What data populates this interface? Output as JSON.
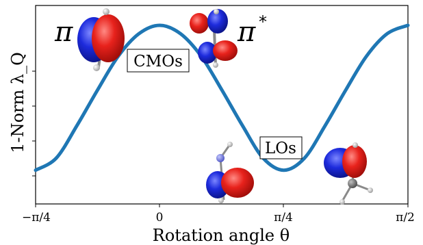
{
  "chart_data": {
    "type": "line",
    "title": "",
    "xlabel": "Rotation angle θ",
    "ylabel": "1-Norm λ_Q",
    "xlim": [
      -0.7854,
      1.5708
    ],
    "ylim": [
      0.0,
      1.0
    ],
    "xticks": [
      {
        "value": -0.7854,
        "label": "−π/4"
      },
      {
        "value": 0.0,
        "label": "0"
      },
      {
        "value": 0.7854,
        "label": "π/4"
      },
      {
        "value": 1.5708,
        "label": "π/2"
      }
    ],
    "y_tick_labels_shown": false,
    "grid": false,
    "series": [
      {
        "color": "#1f77b4",
        "x": [
          -0.7854,
          -0.6545,
          -0.5236,
          -0.3927,
          -0.2618,
          -0.1309,
          0.0,
          0.1309,
          0.2618,
          0.3927,
          0.5236,
          0.6545,
          0.7854,
          0.9163,
          1.0472,
          1.1781,
          1.309,
          1.4399,
          1.5708
        ],
        "y": [
          0.17,
          0.231,
          0.395,
          0.575,
          0.745,
          0.858,
          0.9,
          0.858,
          0.745,
          0.575,
          0.395,
          0.231,
          0.17,
          0.231,
          0.395,
          0.575,
          0.745,
          0.858,
          0.9
        ]
      }
    ],
    "annotations": [
      {
        "id": "pi",
        "text": "π"
      },
      {
        "id": "pi-star",
        "text": "π",
        "superscript": "*"
      },
      {
        "id": "cmos",
        "text": "CMOs",
        "boxed": true
      },
      {
        "id": "los",
        "text": "LOs",
        "boxed": true
      }
    ]
  },
  "colors": {
    "line": "#1f77b4",
    "lobe_red": "#e8221c",
    "lobe_blue": "#1d2bdc",
    "atom_white": "#f2f2f2",
    "atom_grey": "#7a7a7a",
    "atom_blue": "#7f86e6"
  },
  "images": [
    {
      "id": "orbital-pi",
      "depicts": "pi molecular orbital"
    },
    {
      "id": "orbital-pi-star",
      "depicts": "pi* molecular orbital"
    },
    {
      "id": "orbital-lo-1",
      "depicts": "localized orbital"
    },
    {
      "id": "orbital-lo-2",
      "depicts": "localized orbital"
    }
  ]
}
